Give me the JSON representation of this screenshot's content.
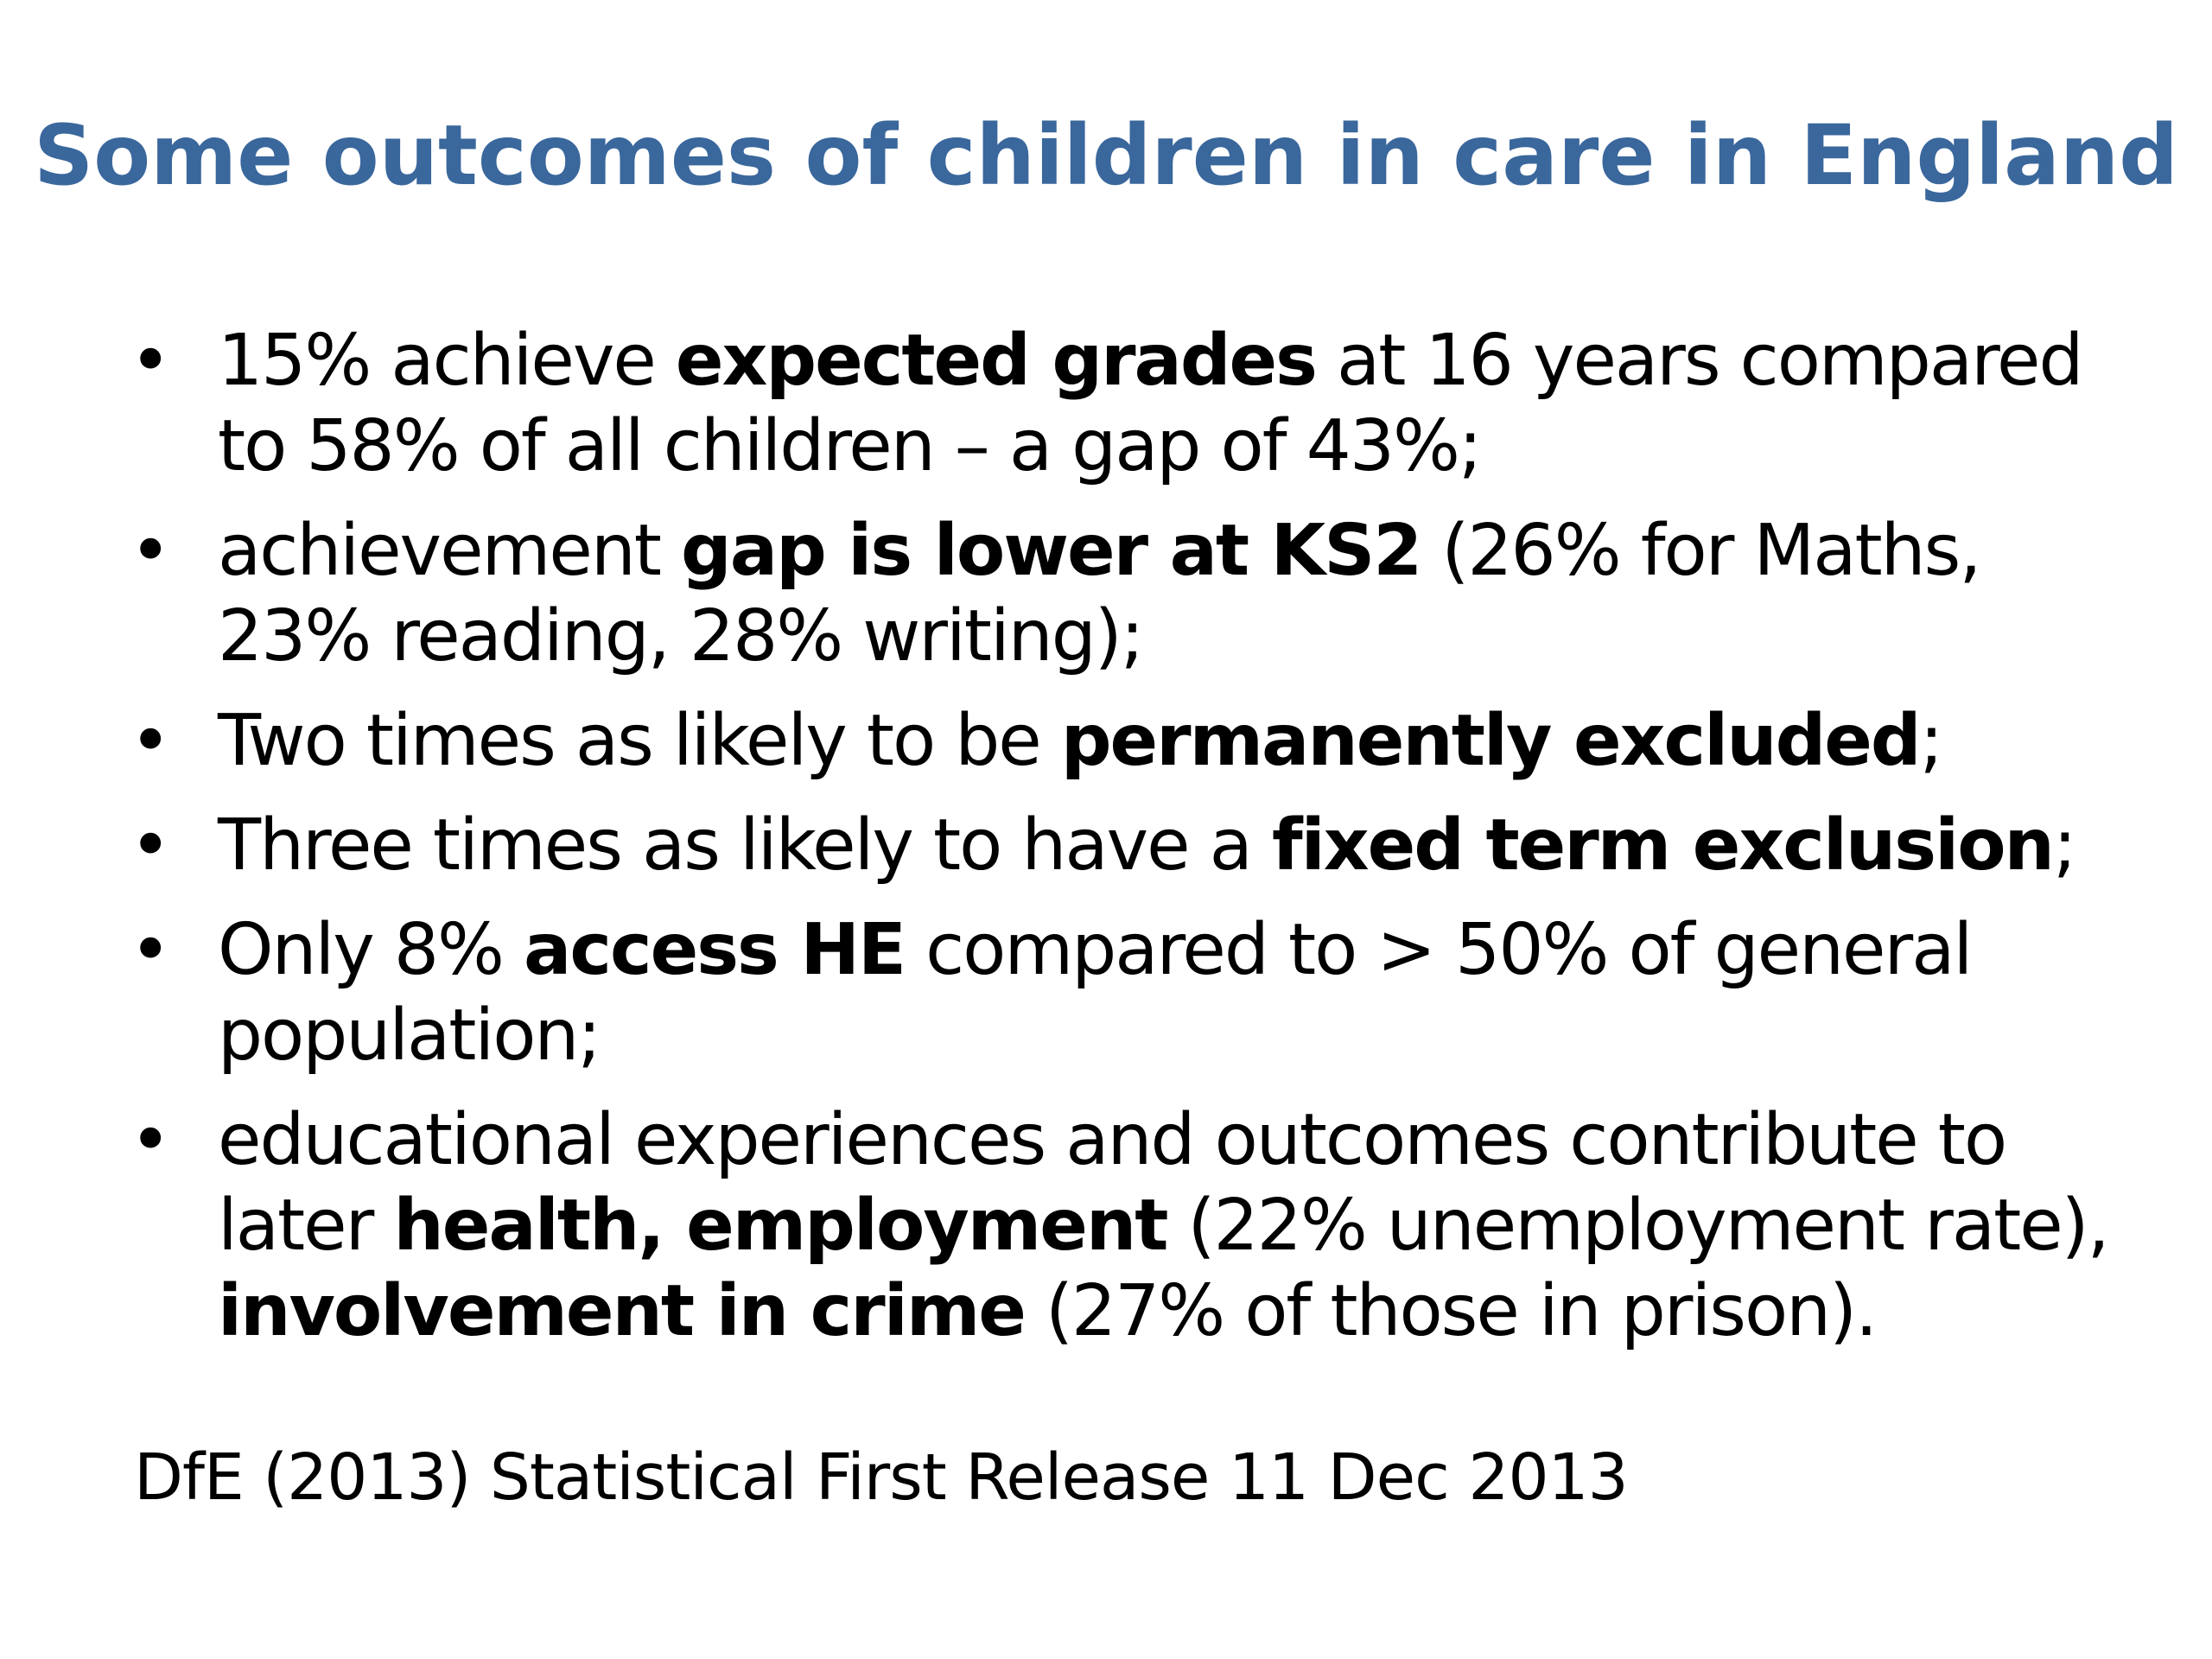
{
  "slide": {
    "title": "Some outcomes of children in care in England",
    "title_color": "#3A679C",
    "bullet_symbol": "•",
    "bullets": [
      {
        "line": "15% achieve expected grades at 16 years compared to 58% of all children – a gap of 43%;",
        "t1": "15% achieve ",
        "b1": "expected grades",
        "t2": " at 16 years compared to 58% of all children – a gap of 43%;"
      },
      {
        "line": "achievement gap is lower at KS2 (26% for Maths, 23% reading, 28% writing);",
        "t1": "achievement ",
        "b1": "gap is lower at KS2",
        "t2": " (26% for Maths, 23% reading, 28% writing);"
      },
      {
        "line": "Two times as likely to be permanently excluded;",
        "t1": "Two times as likely to be ",
        "b1": "permanently excluded",
        "t2": ";"
      },
      {
        "line": "Three times as likely to have a fixed term exclusion;",
        "t1": "Three times as likely to have a ",
        "b1": "fixed term exclusion",
        "t2": ";"
      },
      {
        "line": "Only 8% access HE compared to > 50% of general population;",
        "t1": "Only 8% ",
        "b1": "access HE",
        "t2": " compared to > 50% of general population;"
      },
      {
        "line": "educational experiences and outcomes contribute to later health, employment (22% unemployment rate), involvement in crime (27% of those in prison).",
        "t1": "educational experiences and outcomes contribute to later ",
        "b1": "health, employment",
        "t2": " (22% unemployment rate), ",
        "b2": "involvement in crime",
        "t3": " (27% of those in prison)."
      }
    ],
    "source": "DfE (2013) Statistical First Release 11 Dec 2013"
  }
}
